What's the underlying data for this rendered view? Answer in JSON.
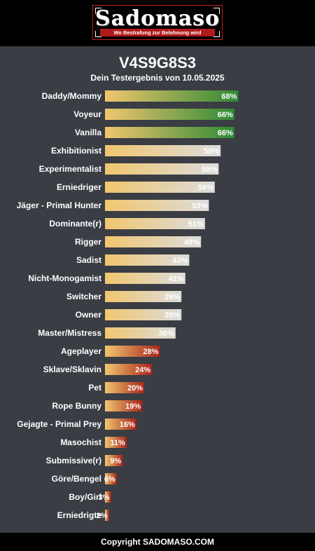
{
  "header": {
    "logo_name": "Sadomaso",
    "logo_tagline": "Wo Bestrafung zur Belohnung wird"
  },
  "result": {
    "id": "V4S9G8S3",
    "subtitle": "Dein Testergebnis von 10.05.2025"
  },
  "colors": {
    "bar_start": "#f1c66e",
    "high_end": "#2f8a36",
    "mid_end": "#dcdcdc",
    "low_end": "#a8241b"
  },
  "chart_data": {
    "type": "bar",
    "orientation": "horizontal",
    "xlim": [
      0,
      100
    ],
    "categories": [
      "Daddy/Mommy",
      "Voyeur",
      "Vanilla",
      "Exhibitionist",
      "Experimentalist",
      "Erniedriger",
      "Jäger - Primal Hunter",
      "Dominante(r)",
      "Rigger",
      "Sadist",
      "Nicht-Monogamist",
      "Switcher",
      "Owner",
      "Master/Mistress",
      "Ageplayer",
      "Sklave/Sklavin",
      "Pet",
      "Rope Bunny",
      "Gejagte - Primal Prey",
      "Masochist",
      "Submissive(r)",
      "Göre/Bengel",
      "Boy/Girl",
      "Erniedrigte"
    ],
    "values": [
      68,
      66,
      66,
      59,
      58,
      56,
      53,
      51,
      49,
      43,
      41,
      39,
      39,
      36,
      28,
      24,
      20,
      19,
      16,
      11,
      9,
      6,
      3,
      2
    ],
    "value_labels": [
      "68%",
      "66%",
      "66%",
      "59%",
      "58%",
      "56%",
      "53%",
      "51%",
      "49%",
      "43%",
      "41%",
      "39%",
      "39%",
      "36%",
      "28%",
      "24%",
      "20%",
      "19%",
      "16%",
      "11%",
      "9%",
      "6%",
      "3%",
      "2%"
    ]
  },
  "footer": {
    "text": "Copyright SADOMASO.COM"
  }
}
